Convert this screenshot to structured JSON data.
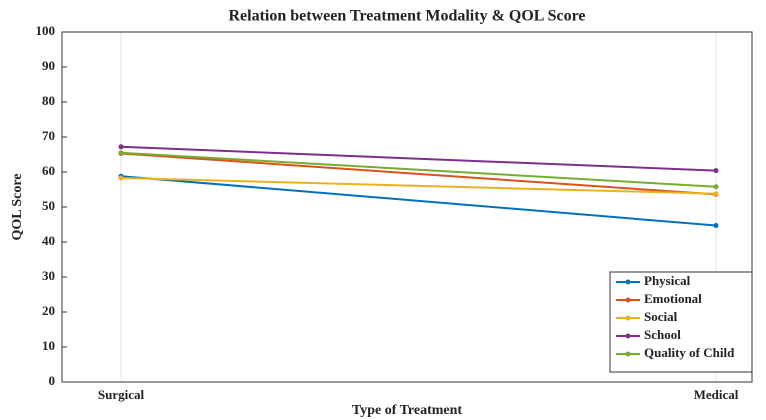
{
  "chart_data": {
    "type": "line",
    "title": "Relation between Treatment Modality & QOL Score",
    "x_label": "Type of Treatment",
    "y_label": "QOL Score",
    "categories": [
      "Surgical",
      "Medical"
    ],
    "series": [
      {
        "name": "Physical",
        "color": "#0072BD",
        "values": [
          58.8,
          44.7
        ]
      },
      {
        "name": "Emotional",
        "color": "#D95319",
        "values": [
          65.3,
          53.6
        ]
      },
      {
        "name": "Social",
        "color": "#EDB120",
        "values": [
          58.3,
          53.8
        ]
      },
      {
        "name": "School",
        "color": "#7E2F8E",
        "values": [
          67.2,
          60.4
        ]
      },
      {
        "name": "Quality of Child",
        "color": "#77AC30",
        "values": [
          65.5,
          55.8
        ]
      }
    ],
    "ylim": [
      0,
      100
    ],
    "yticks": [
      0,
      10,
      20,
      30,
      40,
      50,
      60,
      70,
      80,
      90,
      100
    ],
    "xgrid": true,
    "legend": "lower right"
  }
}
